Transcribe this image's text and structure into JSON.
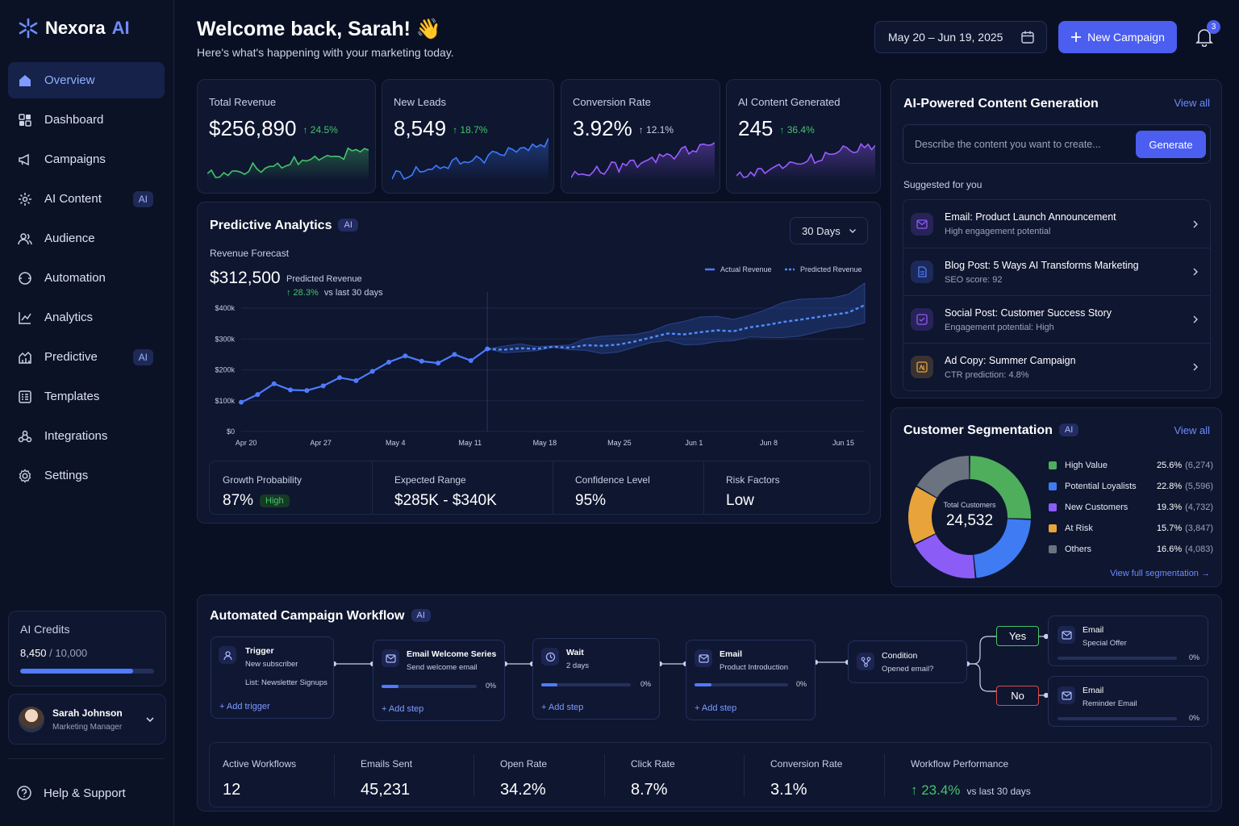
{
  "brand": {
    "name": "Nexora",
    "suffix": "AI"
  },
  "sidebar": {
    "items": [
      {
        "label": "Overview",
        "icon": "home-icon"
      },
      {
        "label": "Dashboard",
        "icon": "dashboard-icon"
      },
      {
        "label": "Campaigns",
        "icon": "megaphone-icon"
      },
      {
        "label": "AI Content",
        "icon": "sparkle-icon",
        "badge": "AI"
      },
      {
        "label": "Audience",
        "icon": "users-icon"
      },
      {
        "label": "Automation",
        "icon": "refresh-icon"
      },
      {
        "label": "Analytics",
        "icon": "line-chart-icon"
      },
      {
        "label": "Predictive",
        "icon": "predictive-icon",
        "badge": "AI"
      },
      {
        "label": "Templates",
        "icon": "template-icon"
      },
      {
        "label": "Integrations",
        "icon": "integration-icon"
      },
      {
        "label": "Settings",
        "icon": "gear-icon"
      }
    ],
    "credits": {
      "title": "AI Credits",
      "used": "8,450",
      "total": "/ 10,000",
      "fraction": 0.845
    },
    "user": {
      "name": "Sarah Johnson",
      "role": "Marketing Manager"
    },
    "help": "Help & Support"
  },
  "header": {
    "title": "Welcome back, Sarah! 👋",
    "subtitle": "Here's what's happening with your marketing today.",
    "date_range": "May 20 – Jun 19, 2025",
    "new_campaign": "New Campaign",
    "notifications": "3"
  },
  "kpis": [
    {
      "label": "Total Revenue",
      "value": "$256,890",
      "change": "↑ 24.5%",
      "color": "#46c46a"
    },
    {
      "label": "New Leads",
      "value": "8,549",
      "change": "↑ 18.7%",
      "color": "#3e7bff"
    },
    {
      "label": "Conversion Rate",
      "value": "3.92%",
      "change": "↑ 12.1%",
      "change_color": "#c9d1e6",
      "color": "#9b5cff"
    },
    {
      "label": "AI Content Generated",
      "value": "245",
      "change": "↑ 36.4%",
      "color": "#9b5cff"
    }
  ],
  "predictive": {
    "title": "Predictive Analytics",
    "badge": "AI",
    "range": "30 Days",
    "subtitle": "Revenue Forecast",
    "value": "$312,500",
    "value_label": "Predicted Revenue",
    "change": "↑ 28.3%",
    "change_label": "vs last 30 days",
    "stats": [
      {
        "label": "Growth Probability",
        "value": "87%",
        "tag": "High"
      },
      {
        "label": "Expected Range",
        "value": "$285K - $340K"
      },
      {
        "label": "Confidence Level",
        "value": "95%"
      },
      {
        "label": "Risk Factors",
        "value": "Low"
      }
    ]
  },
  "chart_data": {
    "type": "line",
    "xlabel": "",
    "ylabel": "",
    "x_ticks": [
      "Apr 20",
      "Apr 27",
      "May 4",
      "May 11",
      "May 18",
      "May 25",
      "Jun 1",
      "Jun 8",
      "Jun 15"
    ],
    "y_ticks": [
      "$0",
      "$100k",
      "$200k",
      "$300k",
      "$400k"
    ],
    "ylim": [
      0,
      400000
    ],
    "legend": [
      "Actual Revenue",
      "Predicted Revenue"
    ],
    "series": [
      {
        "name": "Actual Revenue",
        "x": [
          0,
          1,
          2,
          3,
          4,
          5,
          6,
          7,
          8,
          9,
          10,
          11,
          12,
          13,
          14,
          15
        ],
        "values": [
          95000,
          120000,
          155000,
          135000,
          133000,
          148000,
          175000,
          165000,
          195000,
          225000,
          245000,
          228000,
          222000,
          250000,
          230000,
          268000
        ]
      },
      {
        "name": "Predicted Revenue",
        "x": [
          15,
          16,
          17,
          18,
          19,
          20,
          21,
          22,
          23,
          24,
          25,
          26,
          27,
          28,
          29,
          30,
          31,
          32,
          33,
          34,
          35,
          36,
          37,
          38
        ],
        "values": [
          268000,
          265000,
          270000,
          268000,
          275000,
          272000,
          280000,
          278000,
          282000,
          292000,
          305000,
          318000,
          315000,
          322000,
          328000,
          325000,
          338000,
          345000,
          355000,
          362000,
          370000,
          378000,
          386000,
          410000
        ]
      }
    ]
  },
  "content_gen": {
    "title": "AI-Powered Content Generation",
    "view_all": "View all",
    "placeholder": "Describe the content you want to create...",
    "generate": "Generate",
    "suggested_label": "Suggested for you",
    "items": [
      {
        "title": "Email: Product Launch Announcement",
        "sub": "High engagement potential",
        "icon": "mail-icon",
        "color": "#8a5cf6"
      },
      {
        "title": "Blog Post: 5 Ways AI Transforms Marketing",
        "sub": "SEO score: 92",
        "icon": "document-icon",
        "color": "#4f7bff"
      },
      {
        "title": "Social Post: Customer Success Story",
        "sub": "Engagement potential: High",
        "icon": "chat-icon",
        "color": "#8a5cf6"
      },
      {
        "title": "Ad Copy: Summer Campaign",
        "sub": "CTR prediction: 4.8%",
        "icon": "ad-icon",
        "color": "#e8a33a"
      }
    ]
  },
  "segmentation": {
    "title": "Customer Segmentation",
    "badge": "AI",
    "view_all": "View all",
    "total_label": "Total Customers",
    "total": "24,532",
    "footer": "View full segmentation",
    "segments": [
      {
        "name": "High Value",
        "pct": "25.6%",
        "count": "(6,274)",
        "value": 25.6,
        "color": "#4fae5c"
      },
      {
        "name": "Potential Loyalists",
        "pct": "22.8%",
        "count": "(5,596)",
        "value": 22.8,
        "color": "#3f7bf2"
      },
      {
        "name": "New Customers",
        "pct": "19.3%",
        "count": "(4,732)",
        "value": 19.3,
        "color": "#8b5cf6"
      },
      {
        "name": "At Risk",
        "pct": "15.7%",
        "count": "(3,847)",
        "value": 15.7,
        "color": "#e8a33a"
      },
      {
        "name": "Others",
        "pct": "16.6%",
        "count": "(4,083)",
        "value": 16.6,
        "color": "#6b7280"
      }
    ]
  },
  "workflow": {
    "title": "Automated Campaign Workflow",
    "badge": "AI",
    "trigger": {
      "title": "Trigger",
      "sub": "New subscriber",
      "sub2": "List: Newsletter Signups",
      "add": "+ Add trigger"
    },
    "email1": {
      "title": "Email Welcome Series",
      "sub": "Send welcome email",
      "pct": "0%",
      "add": "+ Add step"
    },
    "wait": {
      "title": "Wait",
      "sub": "2 days",
      "pct": "0%",
      "add": "+ Add step"
    },
    "email2": {
      "title": "Email",
      "sub": "Product Introduction",
      "pct": "0%",
      "add": "+ Add step"
    },
    "condition": {
      "title": "Condition",
      "sub": "Opened email?"
    },
    "yes": "Yes",
    "no": "No",
    "email_yes": {
      "title": "Email",
      "sub": "Special Offer",
      "pct": "0%"
    },
    "email_no": {
      "title": "Email",
      "sub": "Reminder Email",
      "pct": "0%"
    },
    "stats": [
      {
        "label": "Active Workflows",
        "value": "12"
      },
      {
        "label": "Emails Sent",
        "value": "45,231"
      },
      {
        "label": "Open Rate",
        "value": "34.2%"
      },
      {
        "label": "Click Rate",
        "value": "8.7%"
      },
      {
        "label": "Conversion Rate",
        "value": "3.1%"
      }
    ],
    "performance": {
      "label": "Workflow Performance",
      "value": "↑ 23.4%",
      "sub": "vs last 30 days"
    }
  }
}
